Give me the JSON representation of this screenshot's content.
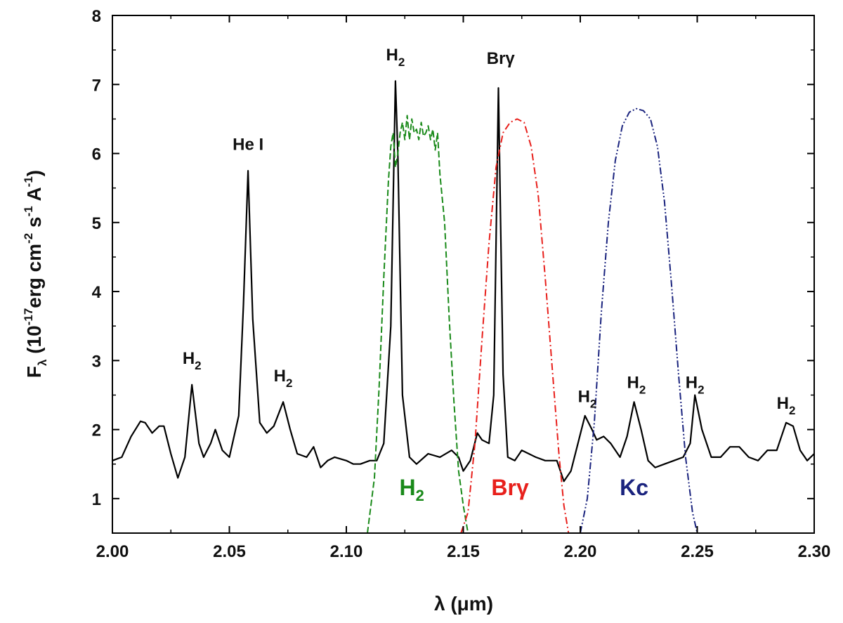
{
  "chart_data": {
    "type": "line",
    "xlabel": "λ (μm)",
    "ylabel": {
      "main": "F",
      "sub": "λ",
      "paren_open": " (10",
      "exp1": "-17",
      "unit_erg": "erg cm",
      "exp2": "-2",
      "unit_s": " s",
      "exp3": "-1",
      "unit_a": " A",
      "exp4": "-1",
      "paren_close": ")"
    },
    "xlim": [
      2.0,
      2.3
    ],
    "ylim": [
      0.5,
      8
    ],
    "x_ticks": [
      "2.00",
      "2.05",
      "2.10",
      "2.15",
      "2.20",
      "2.25",
      "2.30"
    ],
    "x_tick_values": [
      2.0,
      2.05,
      2.1,
      2.15,
      2.2,
      2.25,
      2.3
    ],
    "y_ticks": [
      "1",
      "2",
      "3",
      "4",
      "5",
      "6",
      "7",
      "8"
    ],
    "y_tick_values": [
      1,
      2,
      3,
      4,
      5,
      6,
      7,
      8
    ],
    "colors": {
      "spectrum": "#000000",
      "h2_filter": "#1a8a1a",
      "brg_filter": "#e8201c",
      "kc_filter": "#1a237e"
    },
    "series": [
      {
        "key": "spectrum",
        "style": "solid",
        "x": [
          2.0,
          2.004,
          2.008,
          2.012,
          2.014,
          2.017,
          2.02,
          2.022,
          2.025,
          2.028,
          2.031,
          2.034,
          2.037,
          2.039,
          2.042,
          2.044,
          2.047,
          2.05,
          2.054,
          2.056,
          2.058,
          2.06,
          2.063,
          2.066,
          2.069,
          2.073,
          2.076,
          2.079,
          2.083,
          2.086,
          2.089,
          2.092,
          2.095,
          2.1,
          2.103,
          2.106,
          2.11,
          2.113,
          2.116,
          2.119,
          2.121,
          2.122,
          2.124,
          2.127,
          2.13,
          2.135,
          2.14,
          2.145,
          2.148,
          2.15,
          2.153,
          2.156,
          2.158,
          2.161,
          2.163,
          2.165,
          2.167,
          2.169,
          2.172,
          2.175,
          2.178,
          2.181,
          2.185,
          2.19,
          2.193,
          2.196,
          2.199,
          2.202,
          2.205,
          2.207,
          2.21,
          2.213,
          2.217,
          2.22,
          2.223,
          2.226,
          2.229,
          2.232,
          2.236,
          2.24,
          2.244,
          2.247,
          2.249,
          2.252,
          2.256,
          2.26,
          2.264,
          2.268,
          2.272,
          2.276,
          2.28,
          2.284,
          2.288,
          2.291,
          2.294,
          2.297,
          2.3
        ],
        "y": [
          1.55,
          1.6,
          1.9,
          2.12,
          2.1,
          1.95,
          2.05,
          2.05,
          1.65,
          1.3,
          1.6,
          2.65,
          1.8,
          1.6,
          1.8,
          2.0,
          1.7,
          1.6,
          2.2,
          3.8,
          5.75,
          3.6,
          2.1,
          1.95,
          2.05,
          2.4,
          2.0,
          1.65,
          1.6,
          1.75,
          1.45,
          1.55,
          1.6,
          1.55,
          1.5,
          1.5,
          1.55,
          1.55,
          1.8,
          3.5,
          7.05,
          6.0,
          2.5,
          1.6,
          1.5,
          1.65,
          1.6,
          1.7,
          1.6,
          1.4,
          1.55,
          1.95,
          1.85,
          1.8,
          2.5,
          6.95,
          2.8,
          1.6,
          1.55,
          1.7,
          1.65,
          1.6,
          1.55,
          1.55,
          1.25,
          1.4,
          1.8,
          2.2,
          2.0,
          1.85,
          1.9,
          1.8,
          1.6,
          1.9,
          2.4,
          2.0,
          1.55,
          1.45,
          1.5,
          1.55,
          1.6,
          1.8,
          2.5,
          2.0,
          1.6,
          1.6,
          1.75,
          1.75,
          1.6,
          1.55,
          1.7,
          1.7,
          2.1,
          2.05,
          1.7,
          1.55,
          1.65
        ]
      },
      {
        "key": "h2_filter",
        "style": "dashed",
        "x": [
          2.109,
          2.112,
          2.114,
          2.116,
          2.118,
          2.119,
          2.12,
          2.121,
          2.122,
          2.123,
          2.124,
          2.125,
          2.126,
          2.127,
          2.128,
          2.129,
          2.13,
          2.131,
          2.132,
          2.133,
          2.134,
          2.135,
          2.136,
          2.137,
          2.138,
          2.139,
          2.14,
          2.142,
          2.144,
          2.146,
          2.148,
          2.15,
          2.152
        ],
        "y": [
          0.5,
          1.3,
          2.6,
          4.2,
          5.6,
          6.1,
          6.3,
          5.8,
          6.0,
          6.3,
          6.45,
          6.2,
          6.55,
          6.2,
          6.5,
          6.3,
          6.35,
          6.2,
          6.45,
          6.25,
          6.3,
          6.4,
          6.2,
          6.35,
          6.05,
          6.3,
          5.7,
          5.0,
          3.6,
          2.4,
          1.4,
          0.9,
          0.5
        ]
      },
      {
        "key": "brg_filter",
        "style": "dashdot",
        "x": [
          2.149,
          2.152,
          2.155,
          2.158,
          2.161,
          2.164,
          2.167,
          2.17,
          2.173,
          2.176,
          2.179,
          2.182,
          2.185,
          2.188,
          2.191,
          2.193,
          2.195
        ],
        "y": [
          0.5,
          0.8,
          1.8,
          3.3,
          4.7,
          5.8,
          6.3,
          6.45,
          6.5,
          6.45,
          6.1,
          5.4,
          4.2,
          2.9,
          1.6,
          0.9,
          0.5
        ]
      },
      {
        "key": "kc_filter",
        "style": "dashdotdot",
        "x": [
          2.2,
          2.203,
          2.206,
          2.209,
          2.212,
          2.215,
          2.218,
          2.221,
          2.224,
          2.227,
          2.23,
          2.233,
          2.236,
          2.239,
          2.242,
          2.245,
          2.248,
          2.25
        ],
        "y": [
          0.5,
          1.0,
          2.1,
          3.7,
          5.0,
          5.9,
          6.4,
          6.6,
          6.65,
          6.62,
          6.5,
          6.1,
          5.3,
          4.1,
          2.8,
          1.6,
          0.8,
          0.5
        ]
      }
    ],
    "line_labels": [
      {
        "main": "H",
        "sub": "2",
        "x": 2.034,
        "y": 2.95
      },
      {
        "main": "He I",
        "sub": "",
        "x": 2.058,
        "y": 6.05
      },
      {
        "main": "H",
        "sub": "2",
        "x": 2.073,
        "y": 2.7
      },
      {
        "main": "H",
        "sub": "2",
        "x": 2.121,
        "y": 7.35
      },
      {
        "main": "Brγ",
        "sub": "",
        "x": 2.166,
        "y": 7.3
      },
      {
        "main": "H",
        "sub": "2",
        "x": 2.203,
        "y": 2.4
      },
      {
        "main": "H",
        "sub": "2",
        "x": 2.224,
        "y": 2.6
      },
      {
        "main": "H",
        "sub": "2",
        "x": 2.249,
        "y": 2.6
      },
      {
        "main": "H",
        "sub": "2",
        "x": 2.288,
        "y": 2.3
      }
    ],
    "filter_labels": [
      {
        "main": "H",
        "sub": "2",
        "x": 2.128,
        "y": 1.05,
        "color_key": "h2_filter"
      },
      {
        "main": "Brγ",
        "sub": "",
        "x": 2.17,
        "y": 1.05,
        "color_key": "brg_filter"
      },
      {
        "main": "Kc",
        "sub": "",
        "x": 2.223,
        "y": 1.05,
        "color_key": "kc_filter"
      }
    ]
  }
}
